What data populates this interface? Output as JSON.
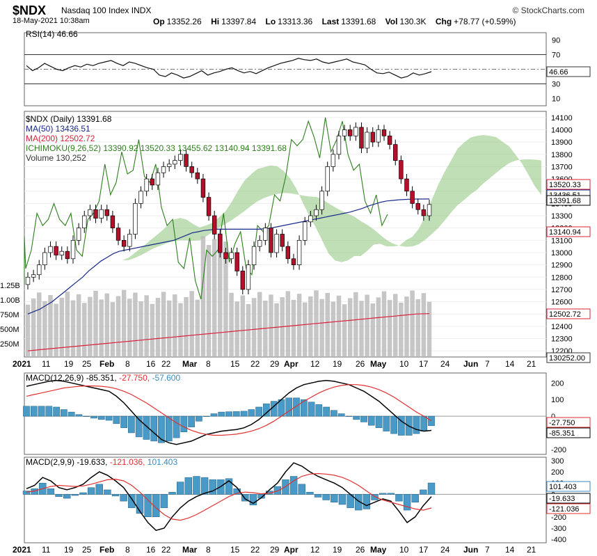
{
  "header": {
    "symbol": "$NDX",
    "name": "Nasdaq 100 Index",
    "exchange": "INDX",
    "brand": "© StockCharts.com",
    "datetime": "18-May-2021 10:38am",
    "open_label": "Op",
    "open": "13352.26",
    "high_label": "Hi",
    "high": "13397.84",
    "low_label": "Lo",
    "low": "13313.36",
    "last_label": "Last",
    "last": "13391.68",
    "vol_label": "Vol",
    "vol": "130.3K",
    "chg_label": "Chg",
    "chg": "+78.77 (+0.59%)"
  },
  "colors": {
    "up": "#ffffff",
    "down": "#b5102a",
    "ma50": "#1a2a8a",
    "ma200": "#d8203a",
    "ichimoku": "#2e7d1e",
    "cloud_up": "#8cc47a",
    "cloud_down": "#e8a0a8",
    "volume": "#b8b8b8",
    "macd_hist": "#4a9ac8"
  },
  "chart_data": [
    {
      "type": "line",
      "panel": "RSI",
      "legend": "RSI(14) 46.66",
      "last_value": "46.66",
      "yticks": [
        "90",
        "70",
        "50",
        "30",
        "10"
      ],
      "ylim": [
        0,
        100
      ],
      "levels": [
        70,
        30
      ],
      "values": [
        55,
        48,
        52,
        58,
        54,
        50,
        48,
        52,
        55,
        53,
        57,
        55,
        58,
        60,
        62,
        58,
        55,
        60,
        58,
        55,
        52,
        50,
        42,
        40,
        45,
        42,
        38,
        40,
        44,
        48,
        42,
        45,
        47,
        50,
        52,
        48,
        45,
        47,
        44,
        48,
        52,
        55,
        58,
        60,
        62,
        65,
        63,
        62,
        64,
        60,
        58,
        60,
        62,
        64,
        60,
        58,
        56,
        50,
        45,
        44,
        46,
        42,
        38,
        40,
        45,
        42,
        44,
        46.66
      ]
    },
    {
      "type": "candlestick",
      "panel": "Price",
      "legend": [
        "$NDX (Daily) 13391.68",
        "MA(50) 13436.51",
        "MA(200) 12502.72",
        "ICHIMOKU(9,26,52) 13390.92 13520.33 13455.62 13140.94 13391.68",
        "Volume 130,252"
      ],
      "yticks": [
        "14100",
        "14000",
        "13900",
        "13800",
        "13700",
        "13600",
        "13500",
        "13400",
        "13300",
        "13200",
        "13100",
        "13000",
        "12900",
        "12800",
        "12700",
        "12600",
        "12500",
        "12400",
        "12300",
        "12200"
      ],
      "ylim": [
        12150,
        14150
      ],
      "right_labels": [
        "13520.33",
        "13436.51",
        "13391.68",
        "13140.94",
        "12502.72",
        "130252.00"
      ],
      "volume_ticks": [
        "1.25B",
        "1.00B",
        "750M",
        "500M",
        "250M"
      ],
      "x_labels": [
        "2021",
        "11",
        "19",
        "25",
        "Feb",
        "8",
        "16",
        "22",
        "Mar",
        "8",
        "15",
        "22",
        "29",
        "Apr",
        "12",
        "19",
        "26",
        "May",
        "10",
        "17",
        "24",
        "Jun",
        "7",
        "14",
        "21"
      ],
      "close": [
        12800,
        12820,
        12900,
        13000,
        13050,
        12980,
        13010,
        12950,
        13100,
        13200,
        13300,
        13350,
        13280,
        13350,
        13300,
        13200,
        13100,
        13050,
        13150,
        13400,
        13500,
        13600,
        13550,
        13650,
        13700,
        13720,
        13750,
        13800,
        13700,
        13650,
        13600,
        13450,
        13300,
        13150,
        13000,
        12950,
        13000,
        12850,
        12700,
        12900,
        13050,
        13100,
        13200,
        13000,
        13150,
        13050,
        12950,
        12900,
        13100,
        13250,
        13300,
        13350,
        13500,
        13700,
        13800,
        13950,
        14000,
        13950,
        14020,
        13850,
        13980,
        13900,
        14000,
        13950,
        13880,
        13750,
        13600,
        13500,
        13400,
        13350,
        13300,
        13391.68
      ],
      "ma50": [
        12500,
        12520,
        12540,
        12570,
        12600,
        12640,
        12680,
        12720,
        12760,
        12800,
        12850,
        12890,
        12930,
        12960,
        12990,
        13010,
        13020,
        13030,
        13040,
        13050,
        13060,
        13070,
        13080,
        13090,
        13100,
        13120,
        13140,
        13160,
        13170,
        13180,
        13185,
        13190,
        13190,
        13190,
        13190,
        13190,
        13190,
        13190,
        13190,
        13195,
        13200,
        13210,
        13220,
        13230,
        13240,
        13250,
        13260,
        13270,
        13280,
        13290,
        13300,
        13310,
        13320,
        13330,
        13345,
        13360,
        13380,
        13395,
        13410,
        13420,
        13425,
        13430,
        13433,
        13435,
        13436,
        13436,
        13436.51
      ],
      "ma200": [
        12200,
        12210,
        12220,
        12230,
        12240,
        12250,
        12260,
        12270,
        12280,
        12290,
        12300,
        12310,
        12320,
        12330,
        12340,
        12350,
        12360,
        12370,
        12380,
        12390,
        12400,
        12410,
        12420,
        12430,
        12440,
        12450,
        12460,
        12470,
        12480,
        12490,
        12500,
        12502.72
      ]
    },
    {
      "type": "bar",
      "panel": "MACD(12,26,9)",
      "legend": "MACD(12,26,9) -85.351, -27.750, -57.600",
      "macd_label": "MACD(12,26,9)",
      "values_text": [
        "-85.351",
        "-27.750",
        "-57.600"
      ],
      "yticks": [
        "200",
        "100",
        "0",
        "-100",
        "-200"
      ],
      "ylim": [
        -230,
        260
      ],
      "right_labels": [
        "-27.750",
        "-85.351"
      ],
      "macd": [
        180,
        190,
        200,
        210,
        215,
        210,
        200,
        190,
        180,
        170,
        160,
        150,
        120,
        80,
        30,
        -20,
        -60,
        -100,
        -140,
        -160,
        -170,
        -160,
        -150,
        -130,
        -110,
        -100,
        -90,
        -85,
        -80,
        -70,
        -50,
        -20,
        20,
        60,
        100,
        140,
        170,
        190,
        200,
        210,
        215,
        210,
        200,
        190,
        170,
        150,
        120,
        90,
        50,
        10,
        -30,
        -60,
        -80,
        -90,
        -85.351
      ],
      "signal": [
        120,
        130,
        140,
        150,
        160,
        170,
        175,
        180,
        182,
        182,
        180,
        175,
        165,
        150,
        130,
        105,
        80,
        50,
        20,
        -10,
        -40,
        -65,
        -85,
        -100,
        -110,
        -115,
        -115,
        -112,
        -108,
        -100,
        -90,
        -75,
        -55,
        -30,
        0,
        30,
        60,
        90,
        115,
        140,
        160,
        175,
        185,
        190,
        190,
        185,
        175,
        160,
        140,
        115,
        85,
        55,
        25,
        0,
        -27.75
      ],
      "histogram": [
        60,
        60,
        60,
        60,
        55,
        40,
        25,
        10,
        -2,
        -12,
        -20,
        -25,
        -45,
        -70,
        -100,
        -125,
        -140,
        -150,
        -160,
        -150,
        -130,
        -95,
        -65,
        -30,
        0,
        15,
        25,
        27,
        28,
        30,
        40,
        55,
        75,
        90,
        100,
        110,
        110,
        100,
        85,
        70,
        55,
        35,
        15,
        0,
        -20,
        -35,
        -55,
        -70,
        -90,
        -105,
        -115,
        -115,
        -105,
        -90,
        -57.6
      ]
    },
    {
      "type": "bar",
      "panel": "MACD(2,9,9)",
      "legend": "MACD(2,9,9) -19.633, -121.036, 101.403",
      "macd_label": "MACD(2,9,9)",
      "values_text": [
        "-19.633",
        "-121.036",
        "101.403"
      ],
      "yticks": [
        "300",
        "200",
        "100",
        "0",
        "-100",
        "-200",
        "-300",
        "-400"
      ],
      "ylim": [
        -430,
        330
      ],
      "right_labels": [
        "101.403",
        "-19.633",
        "-121.036"
      ],
      "macd": [
        50,
        80,
        150,
        120,
        60,
        40,
        60,
        90,
        150,
        200,
        170,
        120,
        60,
        -40,
        -150,
        -250,
        -320,
        -300,
        -200,
        -120,
        -60,
        -20,
        10,
        30,
        70,
        120,
        60,
        -40,
        -80,
        -30,
        40,
        100,
        200,
        280,
        250,
        200,
        160,
        130,
        100,
        60,
        0,
        -60,
        -100,
        -70,
        -40,
        -60,
        -150,
        -250,
        -200,
        -100,
        -19.633
      ],
      "signal": [
        20,
        30,
        50,
        70,
        80,
        75,
        70,
        75,
        90,
        110,
        130,
        135,
        120,
        80,
        20,
        -50,
        -120,
        -180,
        -220,
        -230,
        -210,
        -180,
        -140,
        -100,
        -60,
        -20,
        10,
        20,
        15,
        5,
        10,
        30,
        70,
        120,
        160,
        180,
        185,
        180,
        170,
        150,
        120,
        80,
        30,
        -20,
        -50,
        -70,
        -90,
        -110,
        -130,
        -140,
        -121.036
      ],
      "histogram": [
        30,
        50,
        100,
        50,
        -20,
        -35,
        -10,
        15,
        60,
        90,
        40,
        -15,
        -60,
        -120,
        -170,
        -200,
        -200,
        -120,
        20,
        110,
        150,
        160,
        150,
        130,
        130,
        140,
        50,
        -60,
        -95,
        -35,
        30,
        70,
        130,
        160,
        90,
        20,
        -25,
        -50,
        -70,
        -90,
        -120,
        -140,
        -130,
        -50,
        10,
        10,
        -60,
        -140,
        -70,
        40,
        101.403
      ]
    }
  ]
}
